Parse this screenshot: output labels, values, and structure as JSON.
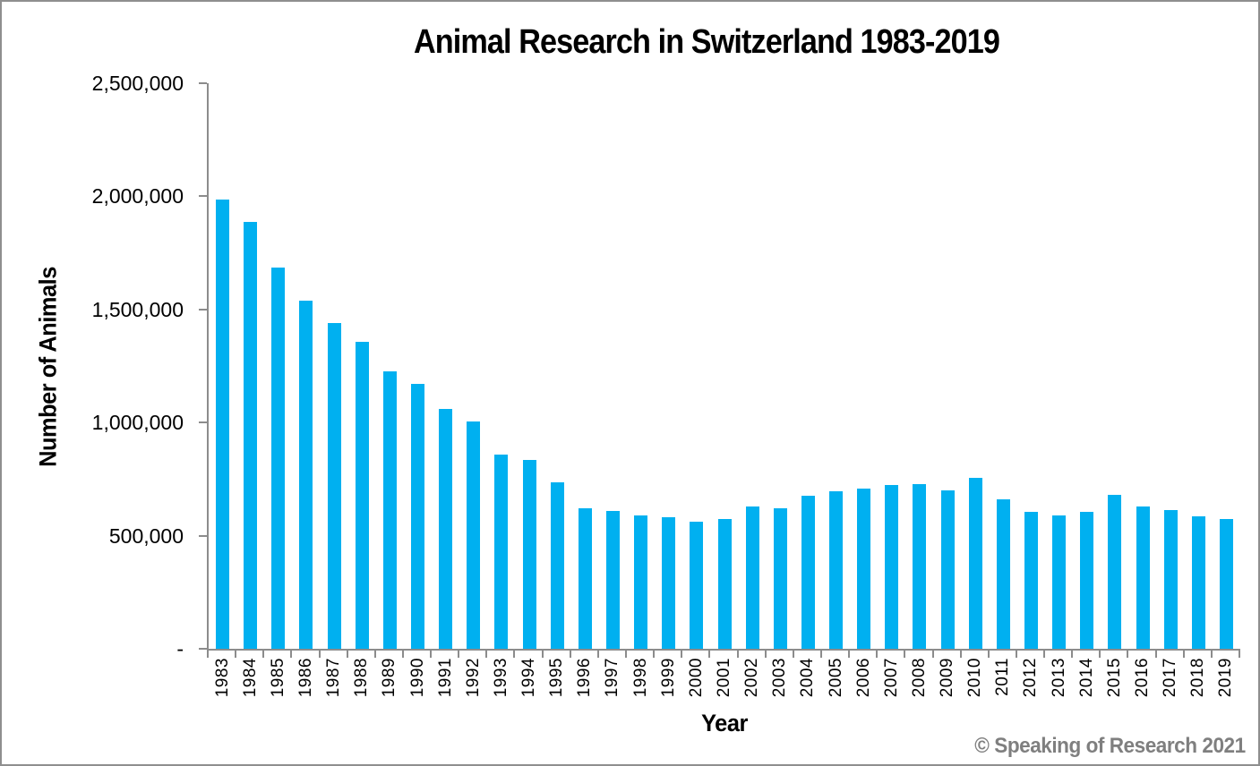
{
  "chart_data": {
    "type": "bar",
    "title": "Animal Research in Switzerland 1983-2019",
    "xlabel": "Year",
    "ylabel": "Number of Animals",
    "categories": [
      "1983",
      "1984",
      "1985",
      "1986",
      "1987",
      "1988",
      "1989",
      "1990",
      "1991",
      "1992",
      "1993",
      "1994",
      "1995",
      "1996",
      "1997",
      "1998",
      "1999",
      "2000",
      "2001",
      "2002",
      "2003",
      "2004",
      "2005",
      "2006",
      "2007",
      "2008",
      "2009",
      "2010",
      "2011",
      "2012",
      "2013",
      "2014",
      "2015",
      "2016",
      "2017",
      "2018",
      "2019"
    ],
    "values": [
      1985000,
      1885000,
      1685000,
      1540000,
      1440000,
      1355000,
      1225000,
      1170000,
      1060000,
      1005000,
      860000,
      835000,
      737000,
      622000,
      610000,
      588000,
      581000,
      560000,
      572000,
      628000,
      620000,
      675000,
      696000,
      707000,
      723000,
      726000,
      700000,
      756000,
      659000,
      604000,
      588000,
      604000,
      680000,
      629000,
      614000,
      586000,
      572000
    ],
    "ylim": [
      0,
      2500000
    ],
    "yticks": [
      {
        "value": 2500000,
        "label": "2,500,000"
      },
      {
        "value": 2000000,
        "label": "2,000,000"
      },
      {
        "value": 1500000,
        "label": "1,500,000"
      },
      {
        "value": 1000000,
        "label": "1,000,000"
      },
      {
        "value": 500000,
        "label": "500,000"
      },
      {
        "value": 0,
        "label": "-"
      }
    ],
    "bar_color": "#00B0F0",
    "axis_color": "#8C8C8C",
    "grid": false,
    "legend": false
  },
  "footer": {
    "copyright": "© Speaking of Research 2021",
    "color": "#7F7F7F"
  }
}
